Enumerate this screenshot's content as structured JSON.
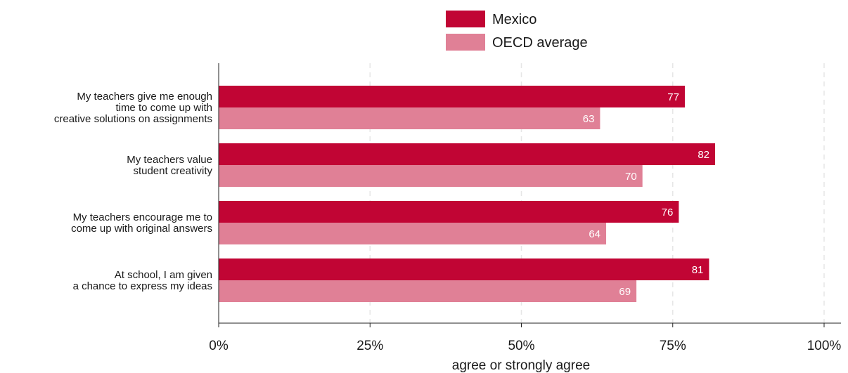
{
  "colors": {
    "mexico": "#c10534",
    "oecd": "#e08096"
  },
  "chart_data": {
    "type": "bar",
    "orientation": "horizontal",
    "categories": [
      [
        "My teachers give me enough",
        "time to come up with",
        "creative solutions on assignments"
      ],
      [
        "My teachers value",
        "student creativity"
      ],
      [
        "My teachers encourage me to",
        "come up with original answers"
      ],
      [
        "At school, I am given",
        "a chance to express my ideas"
      ]
    ],
    "series": [
      {
        "name": "Mexico",
        "values": [
          77,
          82,
          76,
          81
        ],
        "color": "#c10534"
      },
      {
        "name": "OECD average",
        "values": [
          63,
          70,
          64,
          69
        ],
        "color": "#e08096"
      }
    ],
    "xlabel": "agree or strongly agree",
    "xlim": [
      0,
      100
    ],
    "xticks": [
      0,
      25,
      50,
      75,
      100
    ],
    "xtick_labels": [
      "0%",
      "25%",
      "50%",
      "75%",
      "100%"
    ],
    "data_labels": true,
    "grid": "vertical dashed",
    "legend_position": "top"
  }
}
